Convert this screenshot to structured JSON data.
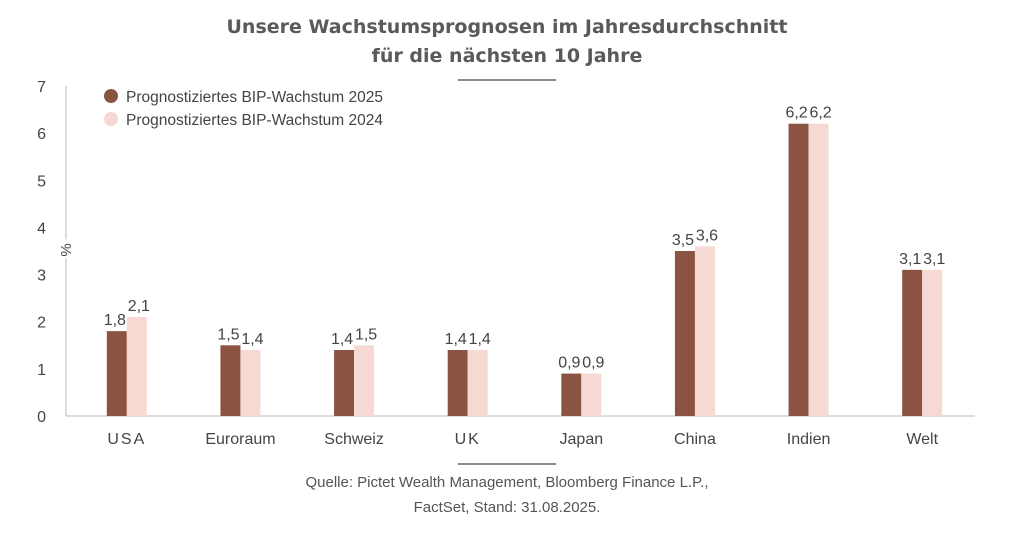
{
  "chart_data": {
    "type": "bar",
    "title_lines": [
      "Unsere Wachstumsprognosen im Jahresdurchschnitt",
      "für die nächsten 10 Jahre"
    ],
    "ylabel": "%",
    "ylim": [
      0,
      7
    ],
    "yticks": [
      "0",
      "1",
      "2",
      "3",
      "4",
      "5",
      "6",
      "7"
    ],
    "categories": [
      "USA",
      "Euroraum",
      "Schweiz",
      "UK",
      "Japan",
      "China",
      "Indien",
      "Welt"
    ],
    "series": [
      {
        "name": "Prognostiziertes BIP-Wachstum 2025",
        "color": "#8b5442",
        "values": [
          1.8,
          1.5,
          1.4,
          1.4,
          0.9,
          3.5,
          6.2,
          3.1
        ],
        "labels": [
          "1,8",
          "1,5",
          "1,4",
          "1,4",
          "0,9",
          "3,5",
          "6,2",
          "3,1"
        ]
      },
      {
        "name": "Prognostiziertes BIP-Wachstum 2024",
        "color": "#f6d9d3",
        "values": [
          2.1,
          1.4,
          1.5,
          1.4,
          0.9,
          3.6,
          6.2,
          3.1
        ],
        "labels": [
          "2,1",
          "1,4",
          "1,5",
          "1,4",
          "0,9",
          "3,6",
          "6,2",
          "3,1"
        ]
      }
    ],
    "legend_position": "top-left",
    "source_lines": [
      "Quelle: Pictet Wealth Management, Bloomberg Finance L.P.,",
      "FactSet, Stand: 31.08.2025."
    ]
  },
  "colors": {
    "axis": "#bbbbbb",
    "text": "#444444",
    "divider": "#666666"
  }
}
